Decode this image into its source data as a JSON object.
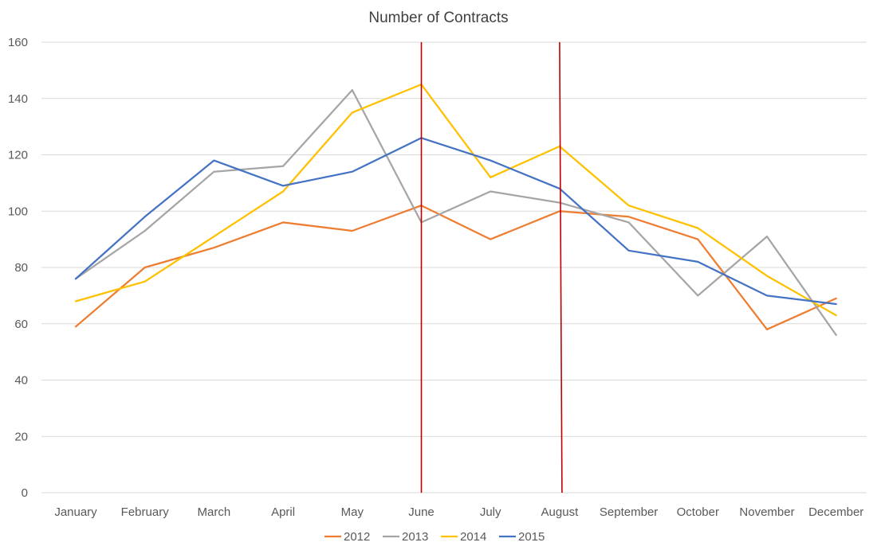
{
  "chart_data": {
    "type": "line",
    "title": "Number of Contracts",
    "xlabel": "",
    "ylabel": "",
    "categories": [
      "January",
      "February",
      "March",
      "April",
      "May",
      "June",
      "July",
      "August",
      "September",
      "October",
      "November",
      "December"
    ],
    "ylim": [
      0,
      160
    ],
    "yticks": [
      0,
      20,
      40,
      60,
      80,
      100,
      120,
      140,
      160
    ],
    "grid": true,
    "legend_position": "bottom",
    "series": [
      {
        "name": "2012",
        "color": "#ED7D31",
        "values": [
          59,
          80,
          87,
          96,
          93,
          102,
          90,
          100,
          98,
          90,
          58,
          69
        ]
      },
      {
        "name": "2013",
        "color": "#A5A5A5",
        "values": [
          76,
          93,
          114,
          116,
          143,
          96,
          107,
          103,
          96,
          70,
          91,
          56
        ]
      },
      {
        "name": "2014",
        "color": "#FFC000",
        "values": [
          68,
          75,
          91,
          107,
          135,
          145,
          112,
          123,
          102,
          94,
          77,
          63
        ]
      },
      {
        "name": "2015",
        "color": "#4472C4",
        "values": [
          76,
          98,
          118,
          109,
          114,
          126,
          118,
          108,
          86,
          82,
          70,
          67
        ]
      }
    ],
    "annotations": [
      {
        "type": "vertical-line",
        "category": "June",
        "color": "#C00000"
      },
      {
        "type": "vertical-line",
        "category": "August",
        "color": "#C00000"
      }
    ]
  }
}
